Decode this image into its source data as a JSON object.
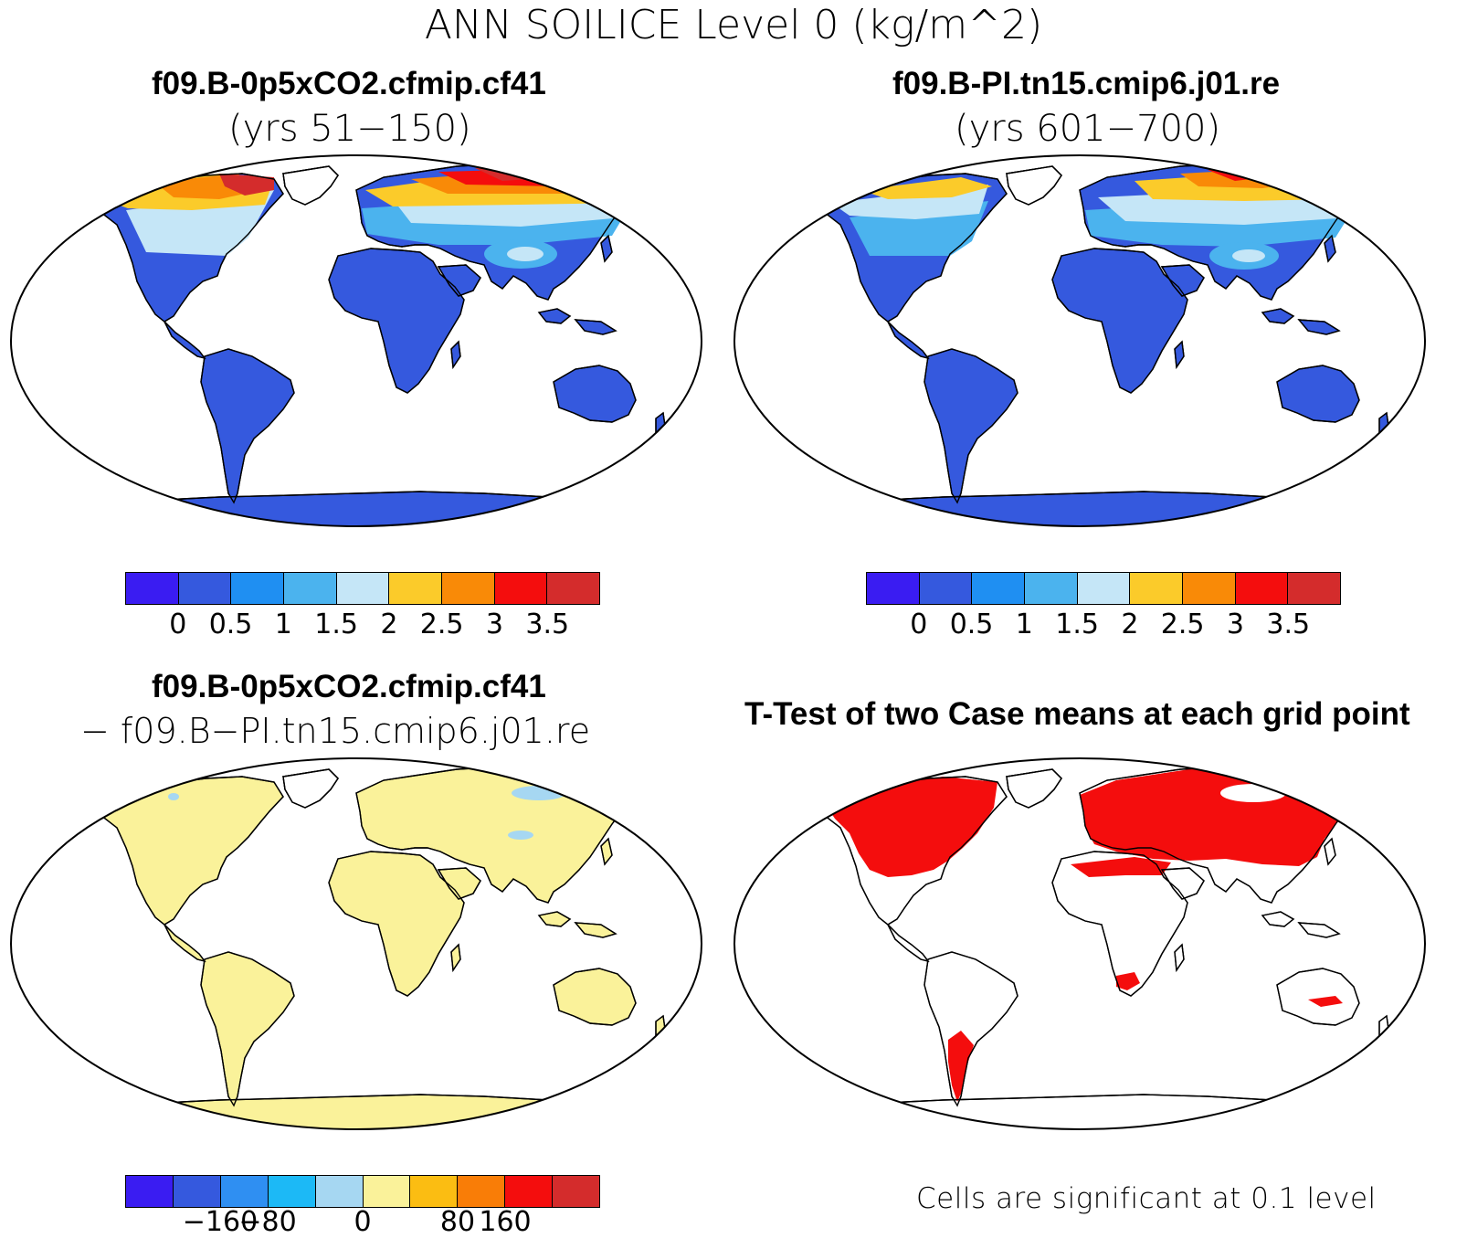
{
  "title": "ANN SOILICE Level 0 (kg/m^2)",
  "panels": {
    "top_left": {
      "case": "f09.B-0p5xCO2.cfmip.cf41",
      "years": "(yrs 51−150)"
    },
    "top_right": {
      "case": "f09.B-PI.tn15.cmip6.j01.re",
      "years": "(yrs 601−700)"
    },
    "bottom_left": {
      "line1": "f09.B-0p5xCO2.cfmip.cf41",
      "line2": "− f09.B−PI.tn15.cmip6.j01.re"
    },
    "bottom_right": {
      "title": "T-Test of two Case means at each grid point",
      "note": "Cells are significant at 0.1 level"
    }
  },
  "colorbars": {
    "main": {
      "colors": [
        "#3a1cf2",
        "#3559de",
        "#1f8ff2",
        "#4bb3ee",
        "#c5e6f7",
        "#fbcb2a",
        "#f98a07",
        "#f40d0d",
        "#d42c2c"
      ],
      "ticks": [
        "0",
        "0.5",
        "1",
        "1.5",
        "2",
        "2.5",
        "3",
        "3.5"
      ]
    },
    "diff": {
      "colors": [
        "#3a1cf2",
        "#3559de",
        "#2f8ff2",
        "#1cb9f6",
        "#a6d7f2",
        "#faf29a",
        "#fbbd12",
        "#f97d07",
        "#f40d0d",
        "#d42c2c"
      ],
      "ticks": [
        "−160",
        "−80",
        "0",
        "80",
        "160"
      ]
    }
  },
  "map_colors": {
    "land_base": "#3559de",
    "diff_land": "#faf29a",
    "diff_minor": "#a6d7f2",
    "significant": "#f40d0d"
  }
}
